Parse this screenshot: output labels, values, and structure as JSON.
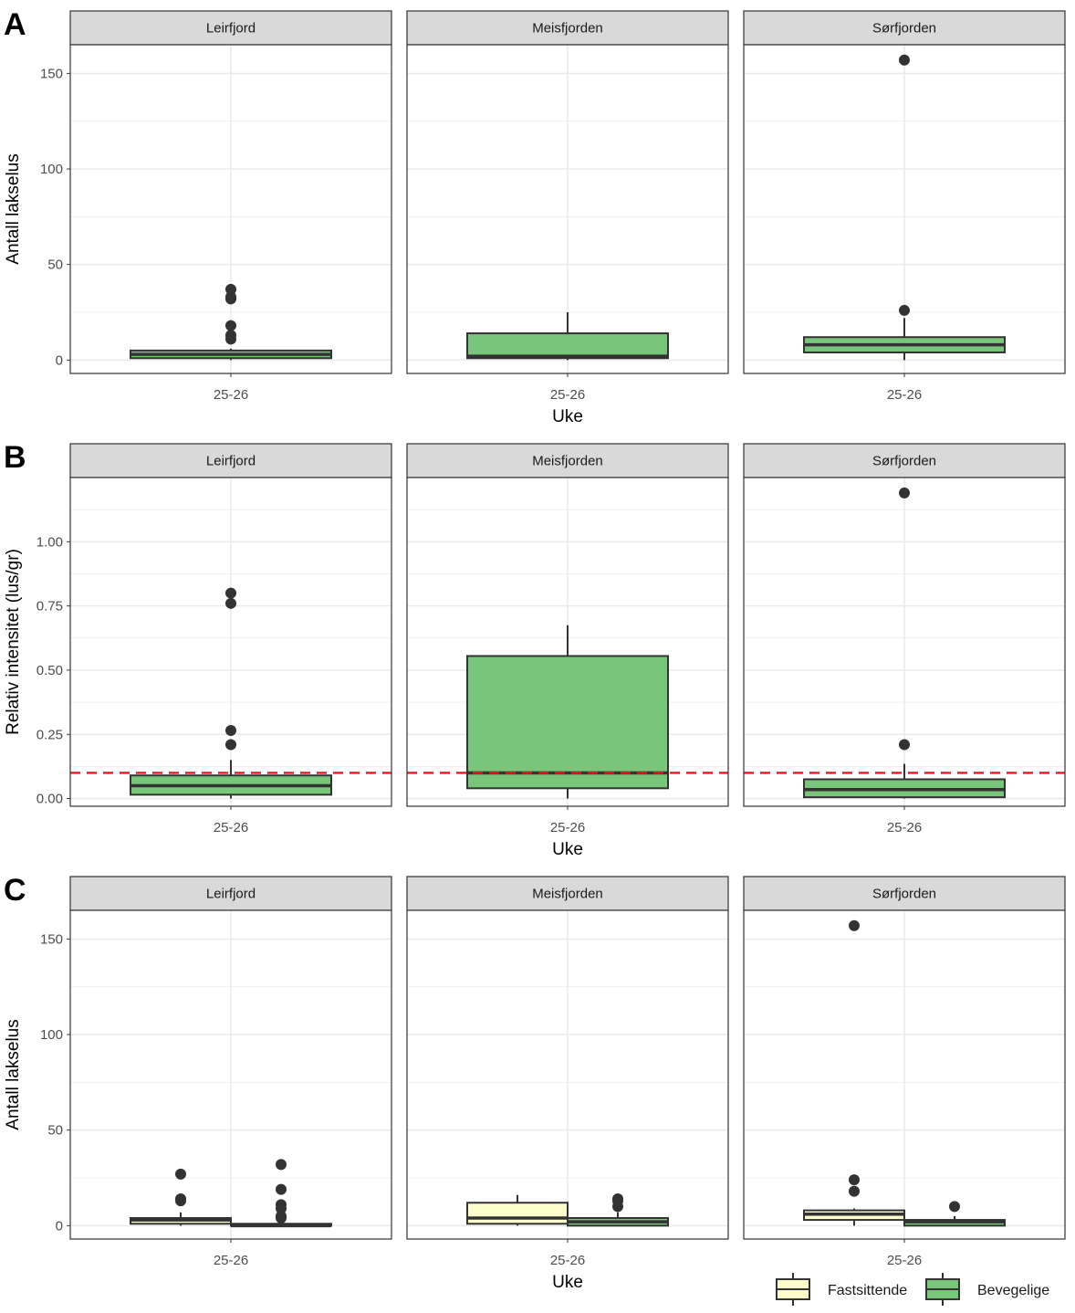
{
  "colors": {
    "fastsittende": "#FFFFCC",
    "bevegelige": "#78C679",
    "single_fill": "#78C679",
    "box_line": "#333333",
    "threshold": "#E41A1C",
    "strip_bg": "#D9D9D9",
    "grid": "#EBEBEB"
  },
  "legend": {
    "items": [
      {
        "key": "fastsittende",
        "label": "Fastsittende"
      },
      {
        "key": "bevegelige",
        "label": "Bevegelige"
      }
    ]
  },
  "chart_data": [
    {
      "type": "boxplot",
      "panel_label": "A",
      "xlabel": "Uke",
      "ylabel": "Antall lakselus",
      "x_tick": "25-26",
      "ylim": [
        -7,
        165
      ],
      "y_ticks": [
        0,
        50,
        100,
        150
      ],
      "y_tick_labels": [
        "0",
        "50",
        "100",
        "150"
      ],
      "facets": [
        {
          "name": "Leirfjord",
          "boxes": [
            {
              "series": "single",
              "q1": 1,
              "median": 3,
              "q3": 5,
              "whisker_low": 0,
              "whisker_high": 6,
              "outliers": [
                37,
                33,
                32,
                18,
                13,
                11
              ]
            }
          ]
        },
        {
          "name": "Meisfjorden",
          "boxes": [
            {
              "series": "single",
              "q1": 1,
              "median": 2,
              "q3": 14,
              "whisker_low": 0,
              "whisker_high": 25,
              "outliers": []
            }
          ]
        },
        {
          "name": "Sørfjorden",
          "boxes": [
            {
              "series": "single",
              "q1": 4,
              "median": 8,
              "q3": 12,
              "whisker_low": 0,
              "whisker_high": 22,
              "outliers": [
                157,
                26
              ]
            }
          ]
        }
      ]
    },
    {
      "type": "boxplot",
      "panel_label": "B",
      "xlabel": "Uke",
      "ylabel": "Relativ intensitet (lus/gr)",
      "x_tick": "25-26",
      "ylim": [
        -0.03,
        1.25
      ],
      "y_ticks": [
        0,
        0.25,
        0.5,
        0.75,
        1.0
      ],
      "y_tick_labels": [
        "0.00",
        "0.25",
        "0.50",
        "0.75",
        "1.00"
      ],
      "threshold": 0.1,
      "facets": [
        {
          "name": "Leirfjord",
          "boxes": [
            {
              "series": "single",
              "q1": 0.015,
              "median": 0.05,
              "q3": 0.09,
              "whisker_low": 0,
              "whisker_high": 0.15,
              "outliers": [
                0.8,
                0.76,
                0.265,
                0.21
              ]
            }
          ]
        },
        {
          "name": "Meisfjorden",
          "boxes": [
            {
              "series": "single",
              "q1": 0.04,
              "median": 0.1,
              "q3": 0.555,
              "whisker_low": 0,
              "whisker_high": 0.675,
              "outliers": []
            }
          ]
        },
        {
          "name": "Sørfjorden",
          "boxes": [
            {
              "series": "single",
              "q1": 0.005,
              "median": 0.035,
              "q3": 0.075,
              "whisker_low": 0,
              "whisker_high": 0.135,
              "outliers": [
                1.19,
                0.21
              ]
            }
          ]
        }
      ]
    },
    {
      "type": "boxplot",
      "panel_label": "C",
      "xlabel": "Uke",
      "ylabel": "Antall lakselus",
      "x_tick": "25-26",
      "ylim": [
        -7,
        165
      ],
      "y_ticks": [
        0,
        50,
        100,
        150
      ],
      "y_tick_labels": [
        "0",
        "50",
        "100",
        "150"
      ],
      "facets": [
        {
          "name": "Leirfjord",
          "boxes": [
            {
              "series": "fastsittende",
              "q1": 1,
              "median": 3,
              "q3": 4,
              "whisker_low": 0,
              "whisker_high": 7,
              "outliers": [
                27,
                14,
                13
              ]
            },
            {
              "series": "bevegelige",
              "q1": 0,
              "median": 0,
              "q3": 1,
              "whisker_low": 0,
              "whisker_high": 2,
              "outliers": [
                32,
                19,
                11,
                9,
                5,
                4
              ]
            }
          ]
        },
        {
          "name": "Meisfjorden",
          "boxes": [
            {
              "series": "fastsittende",
              "q1": 1,
              "median": 4,
              "q3": 12,
              "whisker_low": 0,
              "whisker_high": 16,
              "outliers": []
            },
            {
              "series": "bevegelige",
              "q1": 0,
              "median": 2,
              "q3": 4,
              "whisker_low": 0,
              "whisker_high": 7,
              "outliers": [
                14,
                13,
                10
              ]
            }
          ]
        },
        {
          "name": "Sørfjorden",
          "boxes": [
            {
              "series": "fastsittende",
              "q1": 3,
              "median": 6,
              "q3": 8,
              "whisker_low": 0,
              "whisker_high": 9,
              "outliers": [
                157,
                24,
                18
              ]
            },
            {
              "series": "bevegelige",
              "q1": 0,
              "median": 2,
              "q3": 3,
              "whisker_low": 0,
              "whisker_high": 5,
              "outliers": [
                10
              ]
            }
          ]
        }
      ]
    }
  ]
}
